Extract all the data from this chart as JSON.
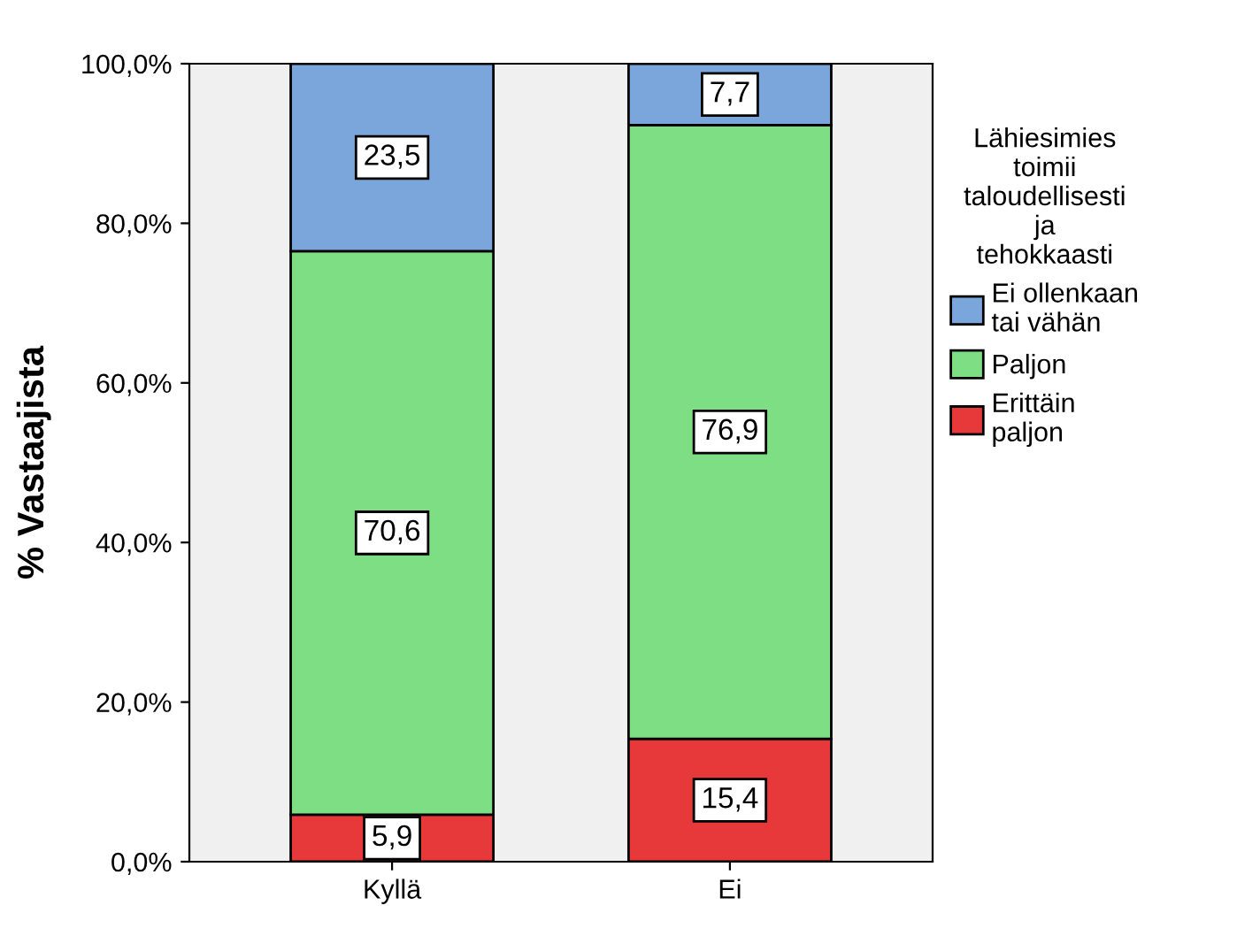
{
  "chart_data": {
    "type": "bar",
    "stacked": true,
    "categories": [
      "Kyllä",
      "Ei"
    ],
    "ylabel": "% Vastaajista",
    "legend_title": "Lähiesimies\ntoimii\ntaloudellisesti\nja\ntehokkaasti",
    "legend": "right",
    "grid": false,
    "ylim": [
      0,
      100
    ],
    "yticks": [
      {
        "value": 0,
        "label": "0,0%"
      },
      {
        "value": 20,
        "label": "20,0%"
      },
      {
        "value": 40,
        "label": "40,0%"
      },
      {
        "value": 60,
        "label": "60,0%"
      },
      {
        "value": 80,
        "label": "80,0%"
      },
      {
        "value": 100,
        "label": "100,0%"
      }
    ],
    "series": [
      {
        "name": "Erittäin\npaljon",
        "color": "#e8393a",
        "values": [
          5.9,
          15.4
        ],
        "value_labels": [
          "5,9",
          "15,4"
        ]
      },
      {
        "name": "Paljon",
        "color": "#7dde83",
        "values": [
          70.6,
          76.9
        ],
        "value_labels": [
          "70,6",
          "76,9"
        ]
      },
      {
        "name": "Ei ollenkaan\ntai vähän",
        "color": "#7ba6dc",
        "values": [
          23.5,
          7.7
        ],
        "value_labels": [
          "23,5",
          "7,7"
        ]
      }
    ]
  }
}
